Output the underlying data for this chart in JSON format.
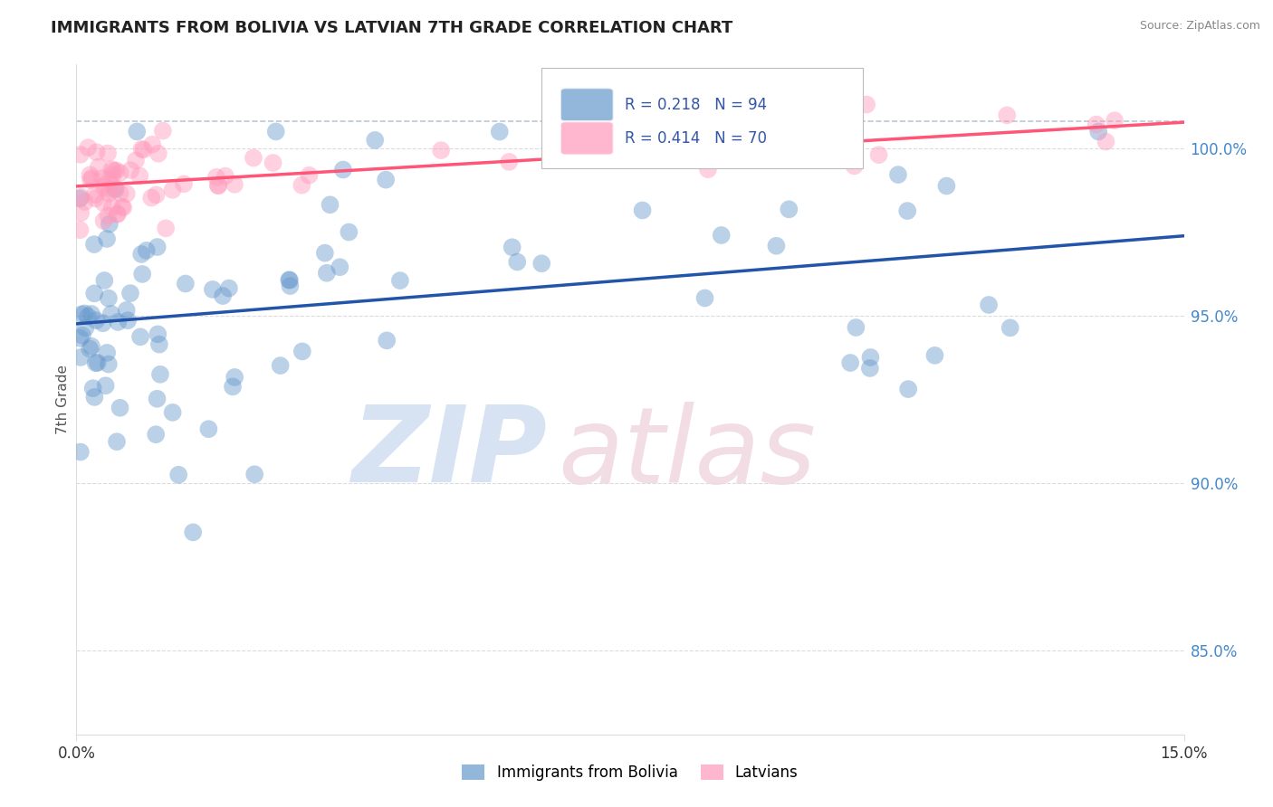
{
  "title": "IMMIGRANTS FROM BOLIVIA VS LATVIAN 7TH GRADE CORRELATION CHART",
  "source": "Source: ZipAtlas.com",
  "xlabel_left": "Immigrants from Bolivia",
  "xlabel_right": "Latvians",
  "ylabel": "7th Grade",
  "xlim": [
    0.0,
    15.0
  ],
  "ylim": [
    82.5,
    102.5
  ],
  "y_ticks_right": [
    85.0,
    90.0,
    95.0,
    100.0
  ],
  "blue_color": "#6699CC",
  "pink_color": "#FF99BB",
  "blue_line_color": "#2255AA",
  "pink_line_color": "#FF5577",
  "R_blue": 0.218,
  "N_blue": 94,
  "R_pink": 0.414,
  "N_pink": 70,
  "background_color": "#FFFFFF",
  "grid_color": "#CCCCCC",
  "dashed_line_color": "#AABBCC",
  "watermark_zip_color": "#D0DFF0",
  "watermark_atlas_color": "#F0D8E0"
}
